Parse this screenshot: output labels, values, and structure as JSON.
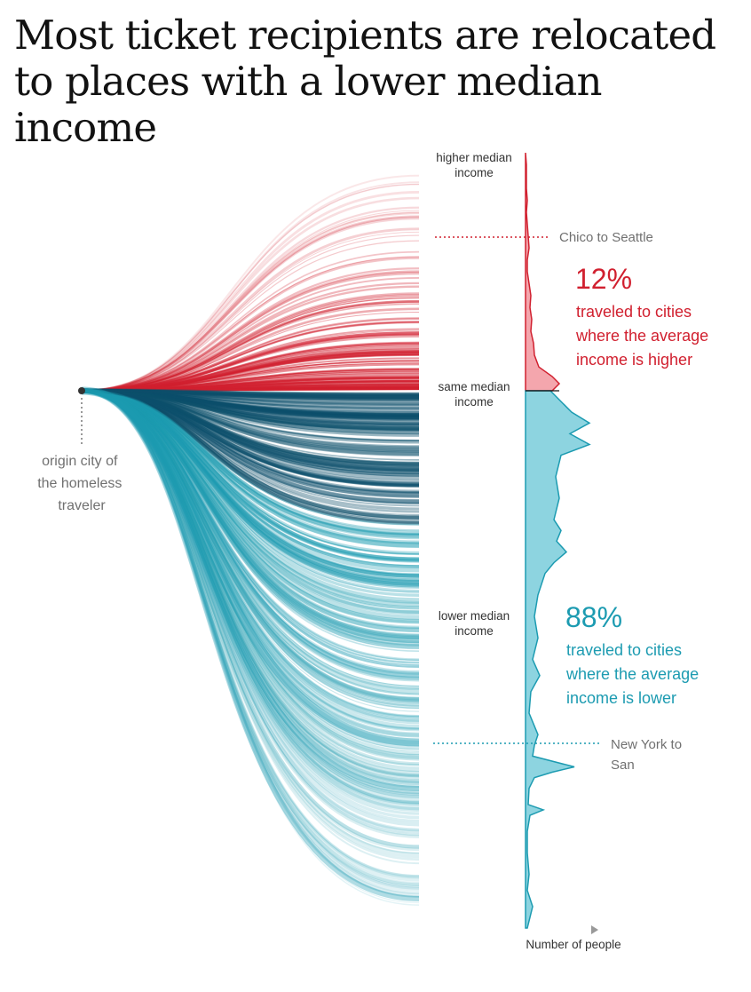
{
  "title": "Most ticket recipients are relocated to places with a lower median income",
  "chart_data": {
    "type": "area",
    "origin_label": "origin city of the homeless traveler",
    "axis_labels": {
      "higher": "higher median income",
      "same": "same median income",
      "lower": "lower median income"
    },
    "x_axis_label": "Number of people",
    "annotations": {
      "chico": "Chico to Seattle",
      "nysj": "New York to San Juan"
    },
    "groups": [
      {
        "name": "higher",
        "percent": "12%",
        "text": "traveled to cities where the average income is higher",
        "color": "#d1202f"
      },
      {
        "name": "lower",
        "percent": "88%",
        "text": "traveled to cities where the average income is lower",
        "color": "#1c9bb1"
      }
    ],
    "distribution": {
      "above": [
        [
          0,
          0
        ],
        [
          0.05,
          1
        ],
        [
          0.15,
          1
        ],
        [
          0.2,
          2
        ],
        [
          0.25,
          1
        ],
        [
          0.3,
          2
        ],
        [
          0.35,
          3
        ],
        [
          0.4,
          4
        ],
        [
          0.45,
          2
        ],
        [
          0.5,
          2
        ],
        [
          0.55,
          4
        ],
        [
          0.6,
          6
        ],
        [
          0.65,
          5
        ],
        [
          0.7,
          7
        ],
        [
          0.75,
          6
        ],
        [
          0.8,
          9
        ],
        [
          0.85,
          10
        ],
        [
          0.9,
          15
        ],
        [
          0.94,
          30
        ],
        [
          0.97,
          38
        ],
        [
          1,
          30
        ]
      ],
      "below": [
        [
          0,
          28
        ],
        [
          0.02,
          40
        ],
        [
          0.04,
          52
        ],
        [
          0.06,
          72
        ],
        [
          0.08,
          50
        ],
        [
          0.1,
          72
        ],
        [
          0.12,
          40
        ],
        [
          0.16,
          34
        ],
        [
          0.2,
          38
        ],
        [
          0.24,
          32
        ],
        [
          0.26,
          40
        ],
        [
          0.28,
          35
        ],
        [
          0.3,
          46
        ],
        [
          0.32,
          32
        ],
        [
          0.34,
          22
        ],
        [
          0.38,
          14
        ],
        [
          0.42,
          10
        ],
        [
          0.46,
          14
        ],
        [
          0.5,
          8
        ],
        [
          0.53,
          16
        ],
        [
          0.56,
          6
        ],
        [
          0.6,
          4
        ],
        [
          0.64,
          14
        ],
        [
          0.66,
          10
        ],
        [
          0.68,
          8
        ],
        [
          0.7,
          55
        ],
        [
          0.71,
          30
        ],
        [
          0.72,
          10
        ],
        [
          0.74,
          4
        ],
        [
          0.77,
          3
        ],
        [
          0.78,
          20
        ],
        [
          0.79,
          5
        ],
        [
          0.82,
          2
        ],
        [
          0.86,
          2
        ],
        [
          0.9,
          4
        ],
        [
          0.93,
          2
        ],
        [
          0.96,
          8
        ],
        [
          0.98,
          5
        ],
        [
          1,
          2
        ]
      ]
    }
  }
}
